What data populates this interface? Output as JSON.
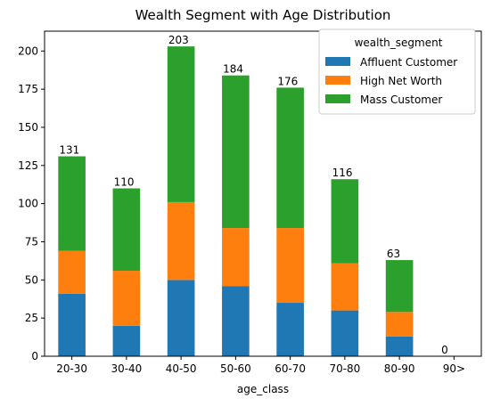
{
  "chart_data": {
    "type": "bar",
    "stacked": true,
    "title": "Wealth Segment with Age Distribution",
    "xlabel": "age_class",
    "ylabel": "",
    "ylim": [
      0,
      213
    ],
    "yticks": [
      0,
      25,
      50,
      75,
      100,
      125,
      150,
      175,
      200
    ],
    "categories": [
      "20-30",
      "30-40",
      "40-50",
      "50-60",
      "60-70",
      "70-80",
      "80-90",
      "90>"
    ],
    "series": [
      {
        "name": "Affluent Customer",
        "color": "#1f77b4",
        "values": [
          41,
          20,
          50,
          46,
          35,
          30,
          13,
          0
        ]
      },
      {
        "name": "High Net Worth",
        "color": "#ff7f0e",
        "values": [
          28,
          36,
          51,
          38,
          49,
          31,
          16,
          0
        ]
      },
      {
        "name": "Mass Customer",
        "color": "#2ca02c",
        "values": [
          62,
          54,
          102,
          100,
          92,
          55,
          34,
          0
        ]
      }
    ],
    "totals": [
      131,
      110,
      203,
      184,
      176,
      116,
      63,
      0
    ],
    "legend": {
      "title": "wealth_segment",
      "placement": "top-right"
    },
    "grid": false
  }
}
